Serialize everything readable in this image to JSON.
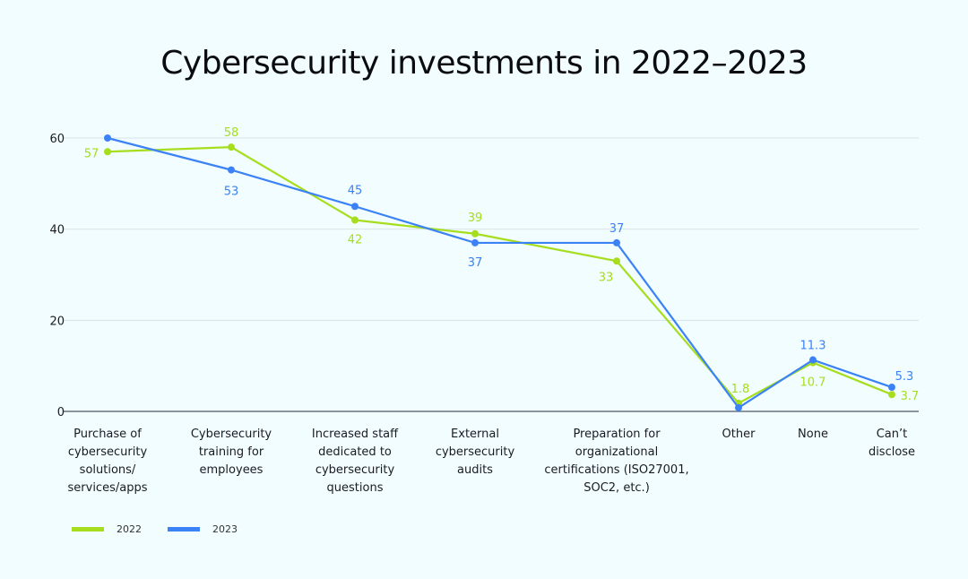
{
  "chart_data": {
    "type": "line",
    "title": "Cybersecurity investments in 2022–2023",
    "categories": [
      "Purchase of cybersecurity solutions/ services/apps",
      "Cybersecurity training for employees",
      "Increased staff dedicated to cybersecurity questions",
      "External cybersecurity audits",
      "Preparation for organizational certifications (ISO27001, SOC2, etc.)",
      "Other",
      "None",
      "Can’t disclose"
    ],
    "series": [
      {
        "name": "2022",
        "color": "#a6de1e",
        "values": [
          57,
          58,
          42,
          39,
          33,
          1.8,
          10.7,
          3.7
        ],
        "labels": [
          "57",
          "58",
          "42",
          "39",
          "33",
          "1.8",
          "10.7",
          "3.7"
        ]
      },
      {
        "name": "2023",
        "color": "#3b82f6",
        "values": [
          60,
          53,
          45,
          37,
          37,
          0.8,
          11.3,
          5.3
        ],
        "labels": [
          "",
          "53",
          "45",
          "37",
          "37",
          "",
          "11.3",
          "5.3"
        ]
      }
    ],
    "yticks": [
      "0",
      "20",
      "40",
      "60"
    ],
    "ylim": [
      0,
      60
    ],
    "grid": true,
    "legend": "bottom-left"
  }
}
